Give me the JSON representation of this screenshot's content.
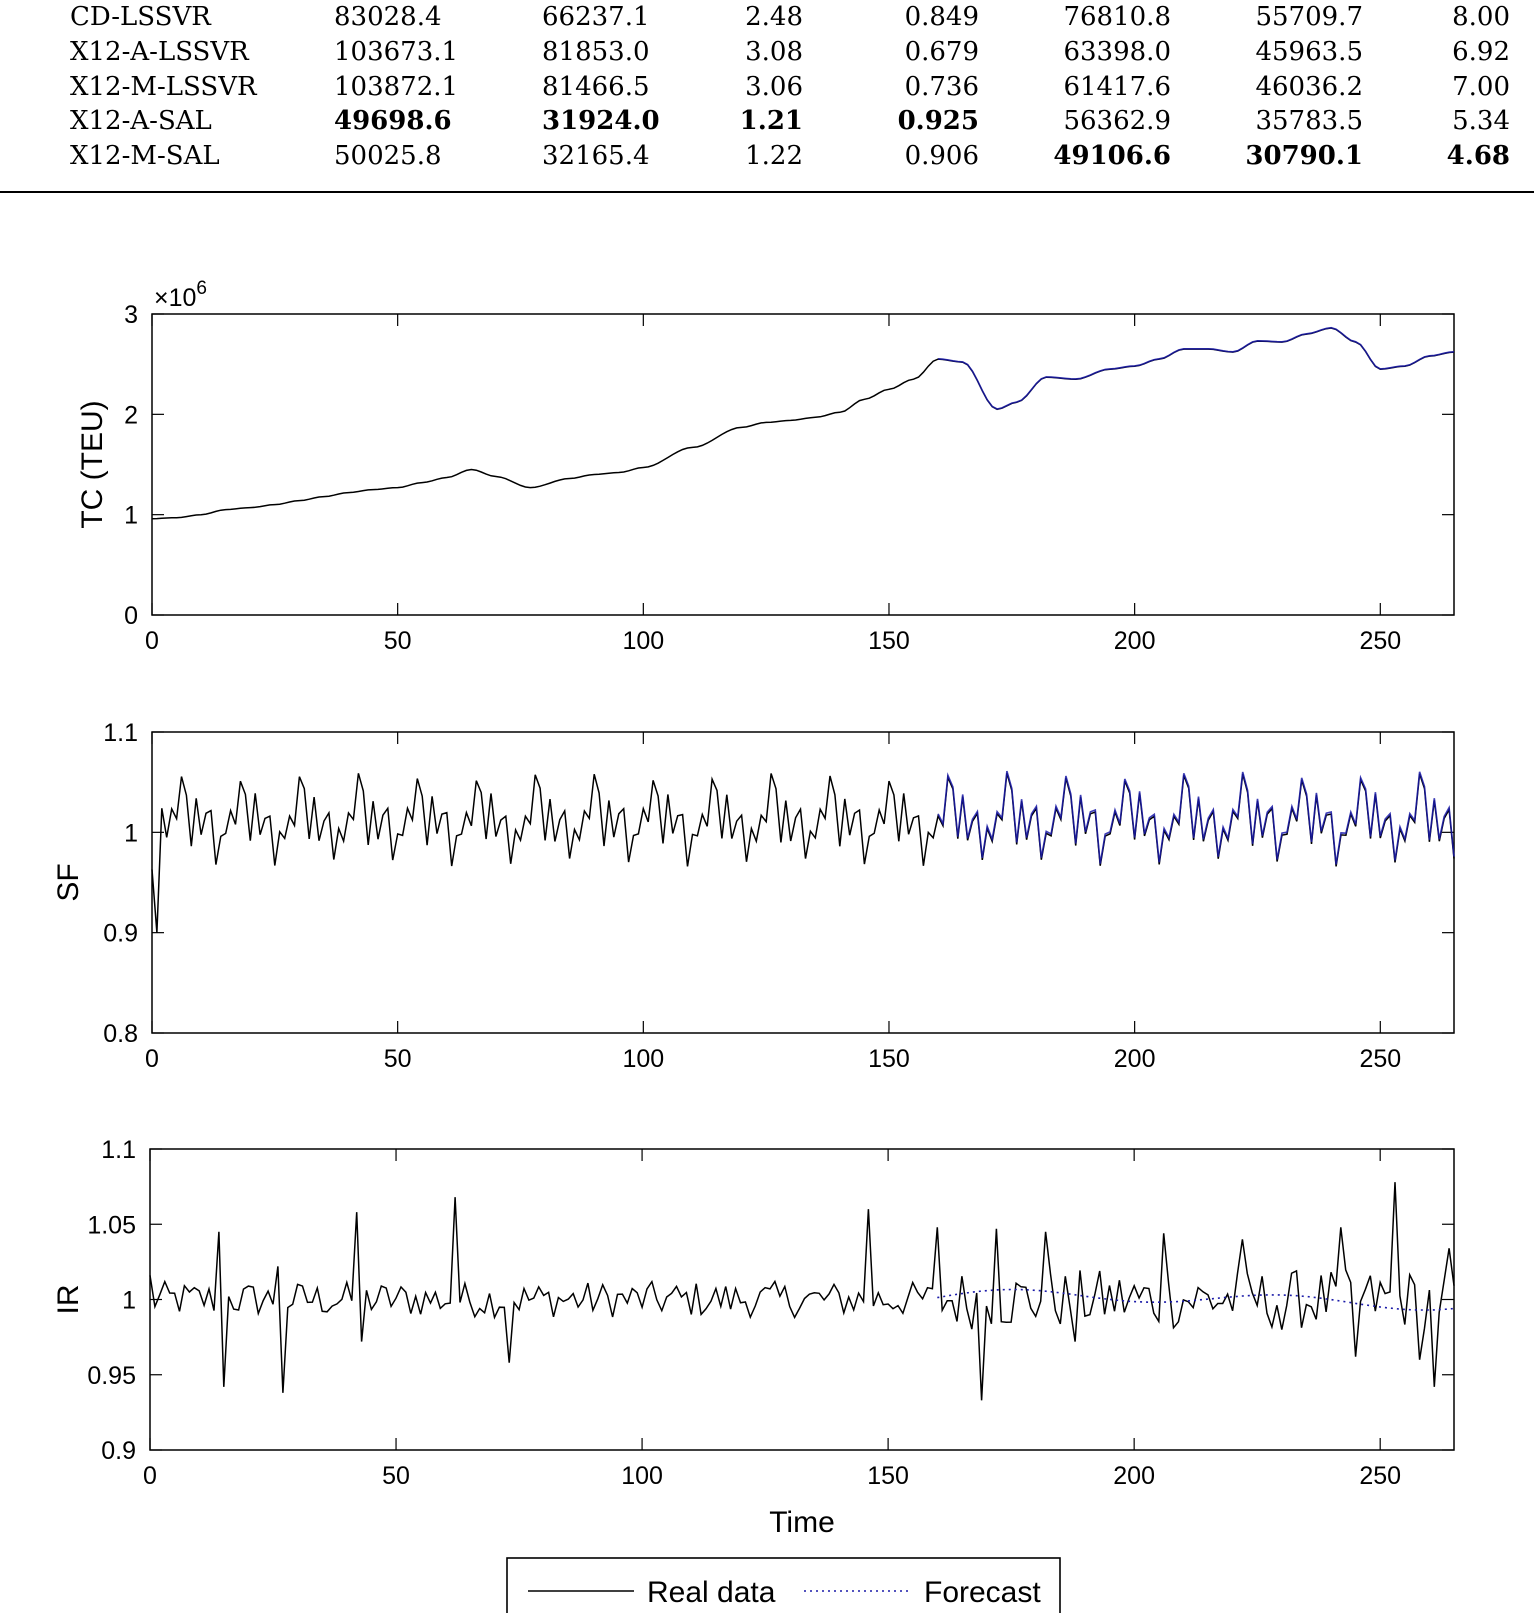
{
  "table": {
    "rows": [
      {
        "model": "CD-LSSVR",
        "values": [
          "83028.4",
          "66237.1",
          "2.48",
          "0.849",
          "76810.8",
          "55709.7",
          "8.00"
        ],
        "bold": [
          false,
          false,
          false,
          false,
          false,
          false,
          false
        ]
      },
      {
        "model": "X12-A-LSSVR",
        "values": [
          "103673.1",
          "81853.0",
          "3.08",
          "0.679",
          "63398.0",
          "45963.5",
          "6.92"
        ],
        "bold": [
          false,
          false,
          false,
          false,
          false,
          false,
          false
        ]
      },
      {
        "model": "X12-M-LSSVR",
        "values": [
          "103872.1",
          "81466.5",
          "3.06",
          "0.736",
          "61417.6",
          "46036.2",
          "7.00"
        ],
        "bold": [
          false,
          false,
          false,
          false,
          false,
          false,
          false
        ]
      },
      {
        "model": "X12-A-SAL",
        "values": [
          "49698.6",
          "31924.0",
          "1.21",
          "0.925",
          "56362.9",
          "35783.5",
          "5.34"
        ],
        "bold": [
          true,
          true,
          true,
          true,
          false,
          false,
          false
        ]
      },
      {
        "model": "X12-M-SAL",
        "values": [
          "50025.8",
          "32165.4",
          "1.22",
          "0.906",
          "49106.6",
          "30790.1",
          "4.68"
        ],
        "bold": [
          false,
          false,
          false,
          false,
          true,
          true,
          true
        ]
      }
    ]
  },
  "colors": {
    "real": "#000000",
    "forecast": "#1a1aa8"
  },
  "chart_data": [
    {
      "type": "line",
      "ylabel": "TC (TEU)",
      "multiplier_label": "×10",
      "multiplier_exp": "6",
      "xlim": [
        0,
        265
      ],
      "ylim": [
        0,
        3
      ],
      "xticks": [
        0,
        50,
        100,
        150,
        200,
        250
      ],
      "yticks": [
        0,
        1,
        2,
        3
      ],
      "ytick_labels": [
        "0",
        "1",
        "2",
        "3"
      ],
      "series_keypoints": {
        "x": [
          0,
          5,
          10,
          15,
          20,
          25,
          30,
          35,
          40,
          45,
          50,
          55,
          60,
          65,
          70,
          77,
          85,
          90,
          95,
          100,
          110,
          120,
          125,
          130,
          135,
          140,
          145,
          150,
          155,
          160,
          165,
          172,
          176,
          182,
          188,
          195,
          200,
          205,
          210,
          215,
          220,
          225,
          230,
          235,
          240,
          245,
          250,
          255,
          260,
          265
        ],
        "y": [
          0.96,
          0.97,
          1.0,
          1.05,
          1.07,
          1.1,
          1.14,
          1.18,
          1.22,
          1.25,
          1.27,
          1.32,
          1.37,
          1.45,
          1.38,
          1.27,
          1.36,
          1.4,
          1.42,
          1.47,
          1.67,
          1.87,
          1.92,
          1.94,
          1.97,
          2.02,
          2.15,
          2.25,
          2.35,
          2.55,
          2.52,
          2.05,
          2.12,
          2.37,
          2.35,
          2.45,
          2.48,
          2.55,
          2.65,
          2.65,
          2.62,
          2.73,
          2.72,
          2.8,
          2.86,
          2.72,
          2.45,
          2.48,
          2.58,
          2.62
        ]
      },
      "forecast_start": 160
    },
    {
      "type": "line",
      "ylabel": "SF",
      "xlim": [
        0,
        265
      ],
      "ylim": [
        0.8,
        1.1
      ],
      "xticks": [
        0,
        50,
        100,
        150,
        200,
        250
      ],
      "yticks": [
        0.8,
        0.9,
        1.0,
        1.1
      ],
      "ytick_labels": [
        "0.8",
        "0.9",
        "1",
        "1.1"
      ],
      "seasonal_pattern": [
        0.995,
        1.02,
        1.01,
        1.055,
        1.04,
        0.99,
        1.035,
        0.995,
        1.015,
        1.02,
        0.97,
        1.0,
        0.9,
        1.025
      ],
      "period": 12,
      "forecast_start": 160
    },
    {
      "type": "line",
      "xlabel": "Time",
      "ylabel": "IR",
      "xlim": [
        0,
        265
      ],
      "ylim": [
        0.9,
        1.1
      ],
      "xticks": [
        0,
        50,
        100,
        150,
        200,
        250
      ],
      "yticks": [
        0.9,
        0.95,
        1.0,
        1.05,
        1.1
      ],
      "ytick_labels": [
        "0.9",
        "0.95",
        "1",
        "1.05",
        "1.1"
      ],
      "spikes": [
        [
          14,
          1.045
        ],
        [
          15,
          0.942
        ],
        [
          26,
          1.022
        ],
        [
          27,
          0.938
        ],
        [
          42,
          1.058
        ],
        [
          43,
          0.972
        ],
        [
          62,
          1.068
        ],
        [
          73,
          0.958
        ],
        [
          146,
          1.06
        ],
        [
          160,
          1.048
        ],
        [
          169,
          0.933
        ],
        [
          172,
          1.047
        ],
        [
          182,
          1.045
        ],
        [
          188,
          0.972
        ],
        [
          206,
          1.044
        ],
        [
          222,
          1.04
        ],
        [
          230,
          0.98
        ],
        [
          242,
          1.048
        ],
        [
          245,
          0.962
        ],
        [
          253,
          1.078
        ],
        [
          258,
          0.96
        ],
        [
          261,
          0.942
        ],
        [
          264,
          1.034
        ]
      ],
      "forecast_start": 160
    }
  ],
  "legend": {
    "entries": [
      "Real data",
      "Forecast"
    ],
    "placement": "bottom-center"
  }
}
